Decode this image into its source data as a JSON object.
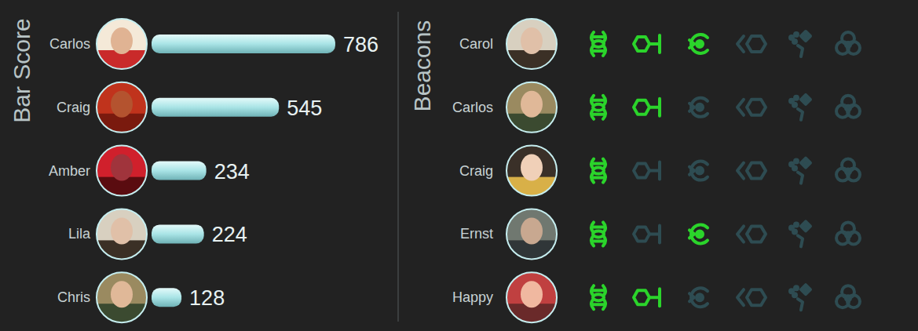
{
  "chart_data": {
    "type": "bar",
    "title": "Bar Score",
    "orientation": "horizontal",
    "categories": [
      "Carlos",
      "Craig",
      "Amber",
      "Lila",
      "Chris"
    ],
    "values": [
      786,
      545,
      234,
      224,
      128
    ],
    "color": "#a9e4e6",
    "xlim": [
      0,
      840
    ],
    "data_labels": true,
    "tick_labels": "y",
    "grid": false
  },
  "beacons": {
    "title": "Beacons",
    "rows": [
      {
        "name": "Carol",
        "active": [
          true,
          true,
          true,
          false,
          false,
          false
        ]
      },
      {
        "name": "Carlos",
        "active": [
          true,
          true,
          false,
          false,
          false,
          false
        ]
      },
      {
        "name": "Craig",
        "active": [
          true,
          false,
          false,
          false,
          false,
          false
        ]
      },
      {
        "name": "Ernst",
        "active": [
          true,
          false,
          true,
          false,
          false,
          false
        ]
      },
      {
        "name": "Happy",
        "active": [
          true,
          true,
          false,
          false,
          false,
          false
        ]
      }
    ]
  }
}
